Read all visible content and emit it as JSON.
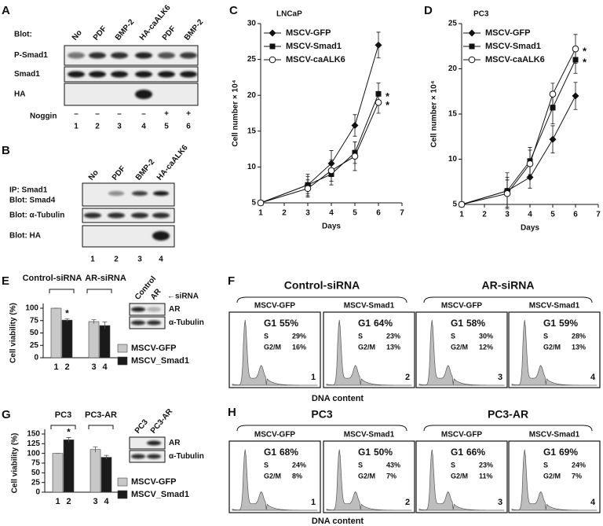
{
  "chart_data": [
    {
      "label": "C",
      "type": "line",
      "title": "LNCaP",
      "x_label": "Days",
      "y_label": "Cell number × 10⁴",
      "x": [
        1,
        3,
        4,
        5,
        6
      ],
      "xlim": [
        1,
        7
      ],
      "xticks": [
        1,
        2,
        3,
        4,
        5,
        6,
        7
      ],
      "ylim": [
        5,
        30
      ],
      "yticks": [
        5,
        10,
        15,
        20,
        25,
        30
      ],
      "series": [
        {
          "name": "MSCV-GFP",
          "marker": "diamond",
          "color": "#111111",
          "values": [
            5,
            7.5,
            10.5,
            15.8,
            27
          ],
          "errors": [
            0.2,
            1.5,
            1.8,
            1.5,
            1.8
          ]
        },
        {
          "name": "MSCV-Smad1",
          "marker": "square",
          "color": "#111111",
          "values": [
            5,
            7.5,
            9,
            12,
            20.2
          ],
          "errors": [
            0.2,
            1.2,
            1.5,
            1.5,
            1.5
          ]
        },
        {
          "name": "MSCV-caALK6",
          "marker": "circle",
          "color": "#111111",
          "values": [
            5,
            7,
            9.5,
            11.5,
            19
          ],
          "errors": [
            0.2,
            1.2,
            1.5,
            2,
            1.5
          ]
        }
      ],
      "annotations": [
        "*",
        "*"
      ]
    },
    {
      "label": "D",
      "type": "line",
      "title": "PC3",
      "x_label": "Days",
      "y_label": "Cell number × 10⁴",
      "x": [
        1,
        3,
        4,
        5,
        6
      ],
      "xlim": [
        1,
        7
      ],
      "xticks": [
        1,
        2,
        3,
        4,
        5,
        6,
        7
      ],
      "ylim": [
        5,
        25
      ],
      "yticks": [
        5,
        10,
        15,
        20,
        25
      ],
      "series": [
        {
          "name": "MSCV-GFP",
          "marker": "diamond",
          "color": "#111111",
          "values": [
            5,
            6.5,
            8,
            12.2,
            17
          ],
          "errors": [
            0.2,
            1.5,
            1.2,
            1.5,
            1.5
          ]
        },
        {
          "name": "MSCV-Smad1",
          "marker": "square",
          "color": "#111111",
          "values": [
            5,
            6.5,
            9.8,
            15.7,
            21
          ],
          "errors": [
            0.2,
            2,
            1.5,
            1.8,
            1.5
          ]
        },
        {
          "name": "MSCV-caALK6",
          "marker": "circle",
          "color": "#111111",
          "values": [
            5,
            6.2,
            9.5,
            17.2,
            22.2
          ],
          "errors": [
            0.2,
            1.5,
            1.5,
            1.2,
            1.6
          ]
        }
      ],
      "annotations": [
        "*",
        "*"
      ]
    },
    {
      "label": "E",
      "type": "bar",
      "y_label": "Cell viability (%)",
      "categories": [
        "1",
        "2",
        "3",
        "4"
      ],
      "group_labels": [
        "Control-siRNA",
        "AR-siRNA"
      ],
      "ylim": [
        0,
        100
      ],
      "yticks": [
        0,
        25,
        50,
        75,
        100
      ],
      "series": [
        {
          "name": "MSCV-GFP",
          "color": "#c8c8c8",
          "values": [
            100,
            null,
            73,
            null
          ],
          "errors": [
            0,
            null,
            4,
            null
          ]
        },
        {
          "name": "MSCV_Smad1",
          "color": "#1a1a1a",
          "values": [
            null,
            76,
            null,
            65
          ],
          "errors": [
            null,
            3,
            null,
            7
          ]
        }
      ],
      "annotations": [
        "*"
      ]
    },
    {
      "label": "G",
      "type": "bar",
      "y_label": "Cell viability (%)",
      "categories": [
        "1",
        "2",
        "3",
        "4"
      ],
      "group_labels": [
        "PC3",
        "PC3-AR"
      ],
      "ylim": [
        0,
        150
      ],
      "yticks": [
        0,
        25,
        50,
        75,
        100,
        125,
        150
      ],
      "series": [
        {
          "name": "MSCV-GFP",
          "color": "#c8c8c8",
          "values": [
            100,
            null,
            110,
            null
          ],
          "errors": [
            0,
            null,
            7,
            null
          ]
        },
        {
          "name": "MSCV_Smad1",
          "color": "#1a1a1a",
          "values": [
            null,
            135,
            null,
            90
          ],
          "errors": [
            null,
            6,
            null,
            5
          ]
        }
      ],
      "annotations": [
        "*"
      ]
    }
  ],
  "panels": {
    "a": {
      "label": "A",
      "blot_header": "Blot:",
      "lanes": [
        "No",
        "PDF",
        "BMP-2",
        "HA-caALK6",
        "PDF",
        "BMP-2"
      ],
      "rows": [
        "P-Smad1",
        "Smad1",
        "HA"
      ],
      "treatment": "Noggin",
      "treatment_signs": [
        "–",
        "–",
        "–",
        "–",
        "+",
        "+"
      ],
      "lane_numbers": [
        "1",
        "2",
        "3",
        "4",
        "5",
        "6"
      ]
    },
    "b": {
      "label": "B",
      "lanes": [
        "No",
        "PDF",
        "BMP-2",
        "HA-caALK6"
      ],
      "rows": [
        "IP: Smad1",
        "Blot: Smad4",
        "Blot: α-Tubulin",
        "Blot: HA"
      ],
      "lane_numbers": [
        "1",
        "2",
        "3",
        "4"
      ]
    },
    "e_inset": {
      "lanes": [
        "Control",
        "AR"
      ],
      "lane_note": "←siRNA",
      "rows": [
        "AR",
        "α-Tubulin"
      ]
    },
    "g_inset": {
      "lanes": [
        "PC3",
        "PC3-AR"
      ],
      "rows": [
        "AR",
        "α-Tubulin"
      ]
    },
    "f": {
      "label": "F",
      "groups": [
        "Control-siRNA",
        "AR-siRNA"
      ],
      "samples": [
        "MSCV-GFP",
        "MSCV-Smad1",
        "MSCV-GFP",
        "MSCV-Smad1"
      ],
      "x_label": "DNA content",
      "plots": [
        {
          "g1_label": "G1",
          "g1": "55%",
          "s_label": "S",
          "s": "29%",
          "g2m_label": "G2/M",
          "g2m": "16%",
          "number": "1"
        },
        {
          "g1_label": "G1",
          "g1": "64%",
          "s_label": "S",
          "s": "23%",
          "g2m_label": "G2/M",
          "g2m": "13%",
          "number": "2"
        },
        {
          "g1_label": "G1",
          "g1": "58%",
          "s_label": "S",
          "s": "30%",
          "g2m_label": "G2/M",
          "g2m": "12%",
          "number": "3"
        },
        {
          "g1_label": "G1",
          "g1": "59%",
          "s_label": "S",
          "s": "28%",
          "g2m_label": "G2/M",
          "g2m": "13%",
          "number": "4"
        }
      ]
    },
    "h": {
      "label": "H",
      "groups": [
        "PC3",
        "PC3-AR"
      ],
      "samples": [
        "MSCV-GFP",
        "MSCV-Smad1",
        "MSCV-GFP",
        "MSCV-Smad1"
      ],
      "x_label": "DNA content",
      "plots": [
        {
          "g1_label": "G1",
          "g1": "68%",
          "s_label": "S",
          "s": "24%",
          "g2m_label": "G2/M",
          "g2m": "8%",
          "number": "1"
        },
        {
          "g1_label": "G1",
          "g1": "50%",
          "s_label": "S",
          "s": "43%",
          "g2m_label": "G2/M",
          "g2m": "7%",
          "number": "2"
        },
        {
          "g1_label": "G1",
          "g1": "66%",
          "s_label": "S",
          "s": "23%",
          "g2m_label": "G2/M",
          "g2m": "11%",
          "number": "3"
        },
        {
          "g1_label": "G1",
          "g1": "69%",
          "s_label": "S",
          "s": "24%",
          "g2m_label": "G2/M",
          "g2m": "7%",
          "number": "4"
        }
      ]
    }
  }
}
